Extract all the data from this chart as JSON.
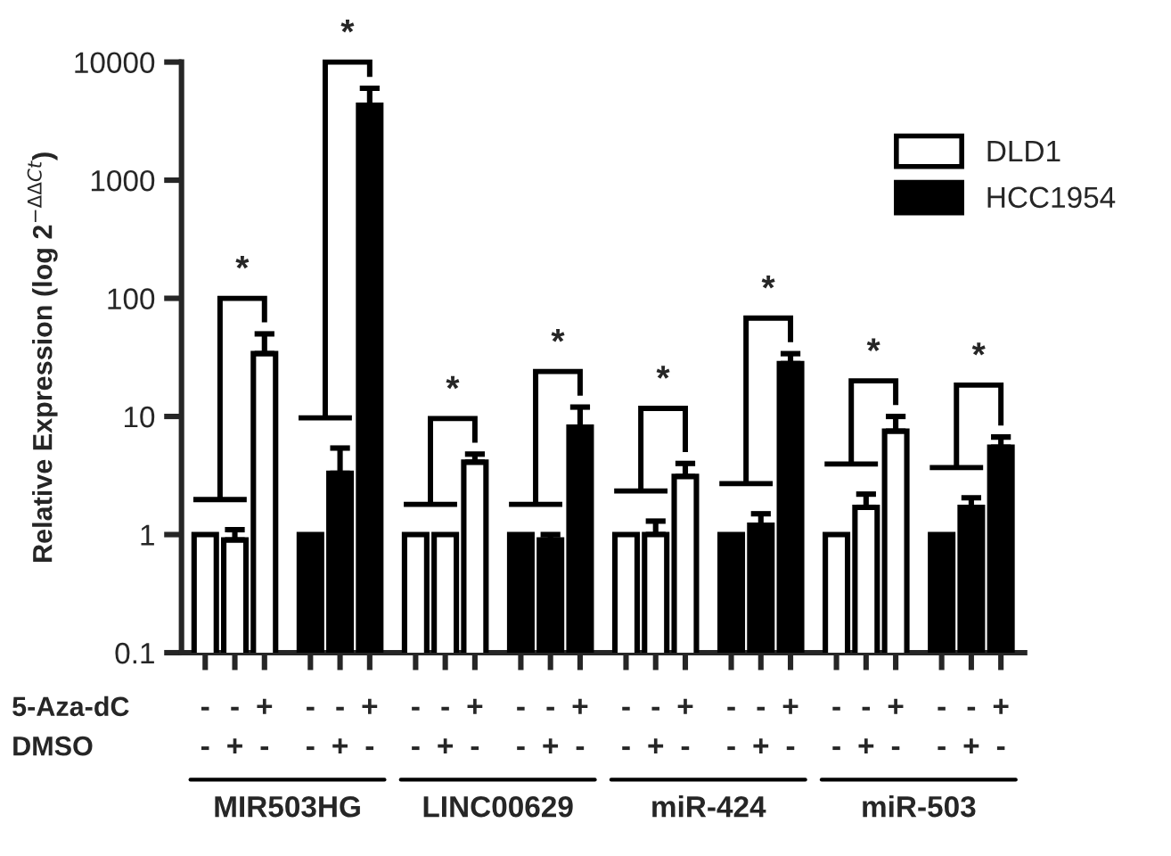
{
  "chart_data": {
    "type": "bar",
    "ylabel": "Relative Expression (log 2$^{−ΔΔCt}$)",
    "categories": [
      "-\n-",
      "-\n+",
      "+\n-",
      "-\n-",
      "-\n+",
      "+\n-",
      "-\n-",
      "-\n+",
      "+\n-",
      "-\n-",
      "-\n+",
      "+\n-",
      "-\n-",
      "-\n+",
      "+\n-",
      "-\n-",
      "-\n+",
      "+\n-",
      "-\n-",
      "-\n+",
      "+\n-",
      "-\n-",
      "-\n+",
      "+\n-"
    ],
    "series": [
      {
        "name": "DLD1",
        "color": "#ffffff",
        "values": [
          1,
          0.9,
          34,
          null,
          null,
          null,
          1,
          1,
          4.1,
          null,
          null,
          null,
          1,
          1,
          3.1,
          null,
          null,
          null,
          1,
          1.7,
          7.5,
          null,
          null,
          null
        ],
        "errors": [
          null,
          [
            0.9,
            1.1
          ],
          [
            34,
            50
          ],
          null,
          null,
          null,
          null,
          null,
          [
            4.1,
            4.8
          ],
          null,
          null,
          null,
          null,
          [
            1,
            1.3
          ],
          [
            3.1,
            4
          ],
          null,
          null,
          null,
          null,
          [
            1.7,
            2.2
          ],
          [
            7.5,
            10
          ],
          null,
          null,
          null
        ]
      },
      {
        "name": "HCC1954",
        "color": "#000000",
        "values": [
          null,
          null,
          null,
          1,
          3.3,
          4300,
          null,
          null,
          null,
          1,
          0.9,
          8.1,
          null,
          null,
          null,
          1,
          1.2,
          28,
          null,
          null,
          null,
          1,
          1.7,
          5.5
        ],
        "errors": [
          null,
          null,
          null,
          null,
          [
            3.3,
            5.4
          ],
          [
            4300,
            6000
          ],
          null,
          null,
          null,
          null,
          [
            0.9,
            1
          ],
          [
            8.1,
            12
          ],
          null,
          null,
          null,
          null,
          [
            1.2,
            1.5
          ],
          [
            28,
            34
          ],
          null,
          null,
          null,
          null,
          [
            1.7,
            2.05
          ],
          [
            5.5,
            6.7
          ]
        ]
      }
    ],
    "log": "y",
    "ylim": [
      0.1,
      10000
    ],
    "yticks": [
      0.1,
      1,
      10,
      100,
      1000,
      10000
    ],
    "grid": false,
    "legend": "top right",
    "annotations": [
      "5-Aza-dC",
      "DMSO",
      "MIR503HG",
      "LINC00629",
      "miR-424",
      "miR-503",
      "*",
      "*",
      "*",
      "*",
      "*",
      "*",
      "*",
      "*"
    ]
  }
}
